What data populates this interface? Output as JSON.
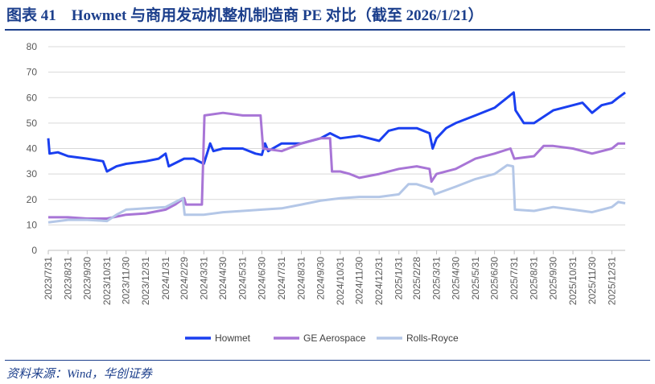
{
  "title": "图表 41　Howmet 与商用发动机整机制造商 PE 对比（截至 2026/1/21）",
  "source": "资料来源：Wind，华创证券",
  "chart_data": {
    "type": "line",
    "title": "",
    "xlabel": "",
    "ylabel": "",
    "ylim": [
      0,
      80
    ],
    "yticks": [
      "0",
      "10",
      "20",
      "30",
      "40",
      "50",
      "60",
      "70",
      "80"
    ],
    "xlim": [
      "2023-07-31",
      "2026-01-21"
    ],
    "xticks": [
      "2023/7/31",
      "2023/8/31",
      "2023/9/30",
      "2023/10/31",
      "2023/11/30",
      "2023/12/31",
      "2024/1/31",
      "2024/2/29",
      "2024/3/31",
      "2024/4/30",
      "2024/5/31",
      "2024/6/30",
      "2024/7/31",
      "2024/8/31",
      "2024/9/30",
      "2024/10/31",
      "2024/11/30",
      "2024/12/31",
      "2025/1/31",
      "2025/2/28",
      "2025/3/31",
      "2025/4/30",
      "2025/5/31",
      "2025/6/30",
      "2025/7/31",
      "2025/8/31",
      "2025/9/30",
      "2025/10/31",
      "2025/11/30",
      "2025/12/31"
    ],
    "grid": true,
    "legend": "bottom",
    "series": [
      {
        "name": "Howmet",
        "color": "#1a3ff0",
        "points": [
          [
            "2023-07-31",
            44
          ],
          [
            "2023-08-02",
            38
          ],
          [
            "2023-08-15",
            38.5
          ],
          [
            "2023-08-31",
            37
          ],
          [
            "2023-09-30",
            36
          ],
          [
            "2023-10-25",
            35
          ],
          [
            "2023-10-31",
            31
          ],
          [
            "2023-11-15",
            33
          ],
          [
            "2023-11-30",
            34
          ],
          [
            "2023-12-31",
            35
          ],
          [
            "2024-01-20",
            36
          ],
          [
            "2024-01-31",
            38
          ],
          [
            "2024-02-05",
            33
          ],
          [
            "2024-02-29",
            36
          ],
          [
            "2024-03-15",
            36
          ],
          [
            "2024-03-31",
            34
          ],
          [
            "2024-04-05",
            38
          ],
          [
            "2024-04-10",
            42
          ],
          [
            "2024-04-15",
            39
          ],
          [
            "2024-04-30",
            40
          ],
          [
            "2024-05-31",
            40
          ],
          [
            "2024-06-20",
            38
          ],
          [
            "2024-06-30",
            37.5
          ],
          [
            "2024-07-05",
            42
          ],
          [
            "2024-07-10",
            39
          ],
          [
            "2024-07-31",
            42
          ],
          [
            "2024-08-31",
            42
          ],
          [
            "2024-09-30",
            44
          ],
          [
            "2024-10-15",
            46
          ],
          [
            "2024-10-31",
            44
          ],
          [
            "2024-11-30",
            45
          ],
          [
            "2024-12-31",
            43
          ],
          [
            "2025-01-15",
            47
          ],
          [
            "2025-01-31",
            48
          ],
          [
            "2025-02-28",
            48
          ],
          [
            "2025-03-20",
            46
          ],
          [
            "2025-03-25",
            40
          ],
          [
            "2025-03-31",
            44
          ],
          [
            "2025-04-15",
            48
          ],
          [
            "2025-04-30",
            50
          ],
          [
            "2025-05-31",
            53
          ],
          [
            "2025-06-30",
            56
          ],
          [
            "2025-07-15",
            59
          ],
          [
            "2025-07-30",
            62
          ],
          [
            "2025-08-02",
            55
          ],
          [
            "2025-08-15",
            50
          ],
          [
            "2025-08-31",
            50
          ],
          [
            "2025-09-30",
            55
          ],
          [
            "2025-10-31",
            57
          ],
          [
            "2025-11-15",
            58
          ],
          [
            "2025-11-30",
            54
          ],
          [
            "2025-12-15",
            57
          ],
          [
            "2025-12-31",
            58
          ],
          [
            "2026-01-10",
            60
          ],
          [
            "2026-01-21",
            62
          ]
        ]
      },
      {
        "name": "GE Aerospace",
        "color": "#a875d6",
        "points": [
          [
            "2023-07-31",
            13
          ],
          [
            "2023-08-31",
            13
          ],
          [
            "2023-09-30",
            12.5
          ],
          [
            "2023-10-31",
            12.5
          ],
          [
            "2023-11-30",
            14
          ],
          [
            "2023-12-31",
            14.5
          ],
          [
            "2024-01-31",
            16
          ],
          [
            "2024-02-15",
            18
          ],
          [
            "2024-02-29",
            20.5
          ],
          [
            "2024-03-03",
            18
          ],
          [
            "2024-03-28",
            18
          ],
          [
            "2024-04-01",
            53
          ],
          [
            "2024-04-30",
            54
          ],
          [
            "2024-05-31",
            53
          ],
          [
            "2024-06-28",
            53
          ],
          [
            "2024-07-02",
            40
          ],
          [
            "2024-07-31",
            39
          ],
          [
            "2024-08-31",
            42
          ],
          [
            "2024-09-30",
            44
          ],
          [
            "2024-10-15",
            44
          ],
          [
            "2024-10-18",
            31
          ],
          [
            "2024-10-31",
            31
          ],
          [
            "2024-11-15",
            30
          ],
          [
            "2024-11-30",
            28.5
          ],
          [
            "2024-12-31",
            30
          ],
          [
            "2025-01-31",
            32
          ],
          [
            "2025-02-28",
            33
          ],
          [
            "2025-03-20",
            32
          ],
          [
            "2025-03-23",
            27
          ],
          [
            "2025-03-31",
            30
          ],
          [
            "2025-04-30",
            32
          ],
          [
            "2025-05-31",
            36
          ],
          [
            "2025-06-30",
            38
          ],
          [
            "2025-07-25",
            40
          ],
          [
            "2025-07-31",
            36
          ],
          [
            "2025-08-31",
            37
          ],
          [
            "2025-09-15",
            41
          ],
          [
            "2025-09-30",
            41
          ],
          [
            "2025-10-31",
            40
          ],
          [
            "2025-11-30",
            38
          ],
          [
            "2025-12-31",
            40
          ],
          [
            "2026-01-10",
            42
          ],
          [
            "2026-01-21",
            42
          ]
        ]
      },
      {
        "name": "Rolls-Royce",
        "color": "#b4c7e7",
        "points": [
          [
            "2023-07-31",
            11
          ],
          [
            "2023-08-31",
            12
          ],
          [
            "2023-09-30",
            12
          ],
          [
            "2023-10-31",
            11.5
          ],
          [
            "2023-11-15",
            14
          ],
          [
            "2023-11-30",
            16
          ],
          [
            "2023-12-31",
            16.5
          ],
          [
            "2024-01-31",
            17
          ],
          [
            "2024-02-27",
            20.5
          ],
          [
            "2024-03-01",
            14
          ],
          [
            "2024-03-31",
            14
          ],
          [
            "2024-04-30",
            15
          ],
          [
            "2024-05-31",
            15.5
          ],
          [
            "2024-06-30",
            16
          ],
          [
            "2024-07-31",
            16.5
          ],
          [
            "2024-08-31",
            18
          ],
          [
            "2024-09-30",
            19.5
          ],
          [
            "2024-10-31",
            20.5
          ],
          [
            "2024-11-30",
            21
          ],
          [
            "2024-12-31",
            21
          ],
          [
            "2025-01-31",
            22
          ],
          [
            "2025-02-15",
            26
          ],
          [
            "2025-02-28",
            26
          ],
          [
            "2025-03-25",
            24
          ],
          [
            "2025-03-28",
            22
          ],
          [
            "2025-04-30",
            25
          ],
          [
            "2025-05-31",
            28
          ],
          [
            "2025-06-30",
            30
          ],
          [
            "2025-07-20",
            33.5
          ],
          [
            "2025-07-29",
            33
          ],
          [
            "2025-08-01",
            16
          ],
          [
            "2025-08-31",
            15.5
          ],
          [
            "2025-09-30",
            17
          ],
          [
            "2025-10-31",
            16
          ],
          [
            "2025-11-30",
            15
          ],
          [
            "2025-12-31",
            17
          ],
          [
            "2026-01-10",
            19
          ],
          [
            "2026-01-21",
            18.5
          ]
        ]
      }
    ]
  }
}
